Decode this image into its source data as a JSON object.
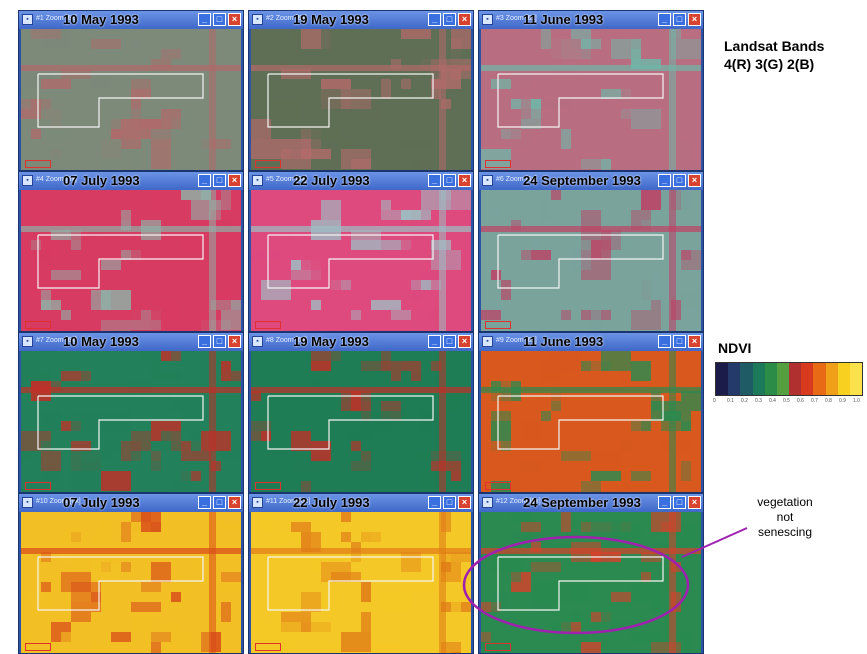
{
  "title": "Landsat Bands",
  "title2": "4(R) 3(G) 2(B)",
  "ndvi_label": "NDVI",
  "ndvi_ticks": [
    "0",
    "0.1",
    "0.2",
    "0.3",
    "0.4",
    "0.5",
    "0.6",
    "0.7",
    "0.8",
    "0.9",
    "1.0"
  ],
  "ndvi_colors": [
    "#1c1c4a",
    "#233a6a",
    "#1f5b64",
    "#1c7a5a",
    "#2b8c48",
    "#54a040",
    "#b03030",
    "#d83a1e",
    "#e86a14",
    "#f0a018",
    "#f8d020",
    "#fbe24a"
  ],
  "annotation": {
    "line1": "vegetation",
    "line2": "not",
    "line3": "senescing"
  },
  "windows": [
    {
      "label": "#1 Zoom [6x]",
      "date": "10 May 1993",
      "palette": "rgb",
      "base": "#7d8a7a",
      "accent": "#b06a6a"
    },
    {
      "label": "#2 Zoom [6x]",
      "date": "19 May 1993",
      "palette": "rgb",
      "base": "#5f6f55",
      "accent": "#b06a6a"
    },
    {
      "label": "#3 Zoom [6x]",
      "date": "11 June 1993",
      "palette": "rgb",
      "base": "#b86e80",
      "accent": "#6fb7a8"
    },
    {
      "label": "#4 Zoom [6x]",
      "date": "07 July 1993",
      "palette": "rgb",
      "base": "#d83b62",
      "accent": "#8fb0a6"
    },
    {
      "label": "#5 Zoom [6x]",
      "date": "22 July 1993",
      "palette": "rgb",
      "base": "#de4a7e",
      "accent": "#9dbfc4"
    },
    {
      "label": "#6 Zoom [6x]",
      "date": "24 September 1993",
      "palette": "rgb",
      "base": "#7aa39c",
      "accent": "#c04064"
    },
    {
      "label": "#7 Zoom [6x]",
      "date": "10 May 1993",
      "palette": "ndvi",
      "base": "#22805a",
      "accent": "#c03028"
    },
    {
      "label": "#8 Zoom [6x]",
      "date": "19 May 1993",
      "palette": "ndvi",
      "base": "#1f7d55",
      "accent": "#c03028"
    },
    {
      "label": "#9 Zoom [6x]",
      "date": "11 June 1993",
      "palette": "ndvi",
      "base": "#d8581e",
      "accent": "#2a8a50"
    },
    {
      "label": "#10 Zoom [6x]",
      "date": "07 July 1993",
      "palette": "ndvi",
      "base": "#f2c024",
      "accent": "#d84a1a"
    },
    {
      "label": "#11 Zoom [6x]",
      "date": "22 July 1993",
      "palette": "ndvi",
      "base": "#f4c826",
      "accent": "#e07a18"
    },
    {
      "label": "#12 Zoom [6x]",
      "date": "24 September 1993",
      "palette": "ndvi",
      "base": "#2a8a50",
      "accent": "#d8402a"
    }
  ]
}
